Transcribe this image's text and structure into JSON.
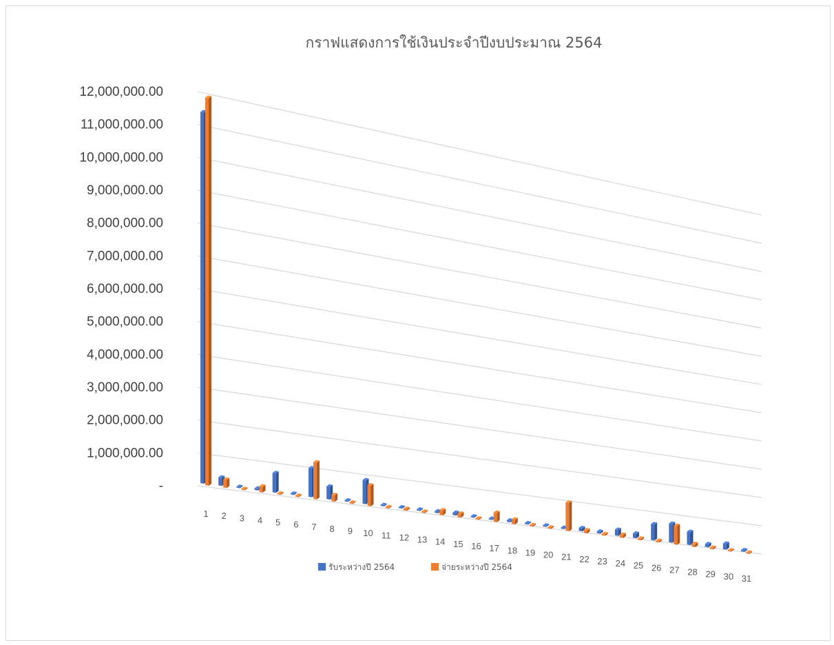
{
  "chart_data": {
    "type": "bar",
    "title": "กราฟแสดงการใช้เงินประจำปีงบประมาณ 2564",
    "categories": [
      "1",
      "2",
      "3",
      "4",
      "5",
      "6",
      "7",
      "8",
      "9",
      "10",
      "11",
      "12",
      "13",
      "14",
      "15",
      "16",
      "17",
      "18",
      "19",
      "20",
      "21",
      "22",
      "23",
      "24",
      "25",
      "26",
      "27",
      "28",
      "29",
      "30",
      "31"
    ],
    "y_tick_labels": [
      "-",
      "1,000,000.00",
      "2,000,000.00",
      "3,000,000.00",
      "4,000,000.00",
      "5,000,000.00",
      "6,000,000.00",
      "7,000,000.00",
      "8,000,000.00",
      "9,000,000.00",
      "10,000,000.00",
      "11,000,000.00",
      "12,000,000.00"
    ],
    "ylim": [
      0,
      12000000
    ],
    "grid": true,
    "legend_position": "bottom",
    "series": [
      {
        "name": "รับระหว่างปี 2564",
        "color": "#4472c4",
        "values": [
          11300000,
          250000,
          30000,
          50000,
          600000,
          20000,
          900000,
          400000,
          20000,
          750000,
          30000,
          30000,
          30000,
          50000,
          80000,
          30000,
          30000,
          50000,
          30000,
          30000,
          30000,
          100000,
          60000,
          200000,
          150000,
          550000,
          650000,
          450000,
          100000,
          200000,
          50000
        ]
      },
      {
        "name": "จ่ายระหว่างปี 2564",
        "color": "#ed7d31",
        "values": [
          11800000,
          250000,
          20000,
          180000,
          20000,
          20000,
          1150000,
          200000,
          30000,
          650000,
          20000,
          50000,
          30000,
          150000,
          120000,
          30000,
          300000,
          150000,
          40000,
          40000,
          950000,
          100000,
          50000,
          100000,
          50000,
          50000,
          650000,
          100000,
          50000,
          30000,
          30000
        ]
      }
    ]
  }
}
